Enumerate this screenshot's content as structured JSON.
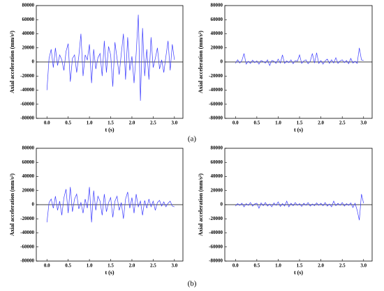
{
  "panel_labels": [
    "(a)",
    "(b)"
  ],
  "chart_data": [
    {
      "type": "line",
      "xlabel": "t (s)",
      "ylabel": "Axial acceleration (mm/s²)",
      "color": "#3b3bff",
      "xlim": [
        -0.25,
        3.2
      ],
      "ylim": [
        -80000,
        80000
      ],
      "xticks": [
        {
          "value": 0,
          "label": "0.0"
        },
        0.5,
        {
          "value": 1,
          "label": "1.0"
        },
        1.5,
        {
          "value": 2,
          "label": "2.0"
        },
        2.5,
        {
          "value": 3,
          "label": "3.0"
        }
      ],
      "yticks": [
        -80000,
        -60000,
        -40000,
        -20000,
        0,
        20000,
        40000,
        60000,
        80000
      ],
      "x": [
        0,
        0.05,
        0.1,
        0.15,
        0.2,
        0.25,
        0.3,
        0.35,
        0.4,
        0.45,
        0.5,
        0.55,
        0.6,
        0.65,
        0.7,
        0.75,
        0.8,
        0.85,
        0.9,
        0.95,
        1,
        1.05,
        1.1,
        1.15,
        1.2,
        1.25,
        1.3,
        1.35,
        1.4,
        1.45,
        1.5,
        1.55,
        1.6,
        1.65,
        1.7,
        1.75,
        1.8,
        1.85,
        1.9,
        1.95,
        2,
        2.05,
        2.1,
        2.15,
        2.2,
        2.25,
        2.3,
        2.35,
        2.4,
        2.45,
        2.5,
        2.55,
        2.6,
        2.65,
        2.7,
        2.75,
        2.8,
        2.85,
        2.9,
        2.95,
        3
      ],
      "values": [
        -40000,
        5000,
        18000,
        -8000,
        20000,
        -5000,
        10000,
        3000,
        -12000,
        15000,
        26000,
        -28000,
        5000,
        10000,
        -15000,
        8000,
        40000,
        -20000,
        10000,
        3000,
        25000,
        -30000,
        18000,
        -10000,
        6000,
        12000,
        -20000,
        30000,
        -15000,
        22000,
        10000,
        -35000,
        28000,
        5000,
        -18000,
        12000,
        40000,
        -25000,
        35000,
        -12000,
        8000,
        -30000,
        12000,
        67000,
        -55000,
        48000,
        -20000,
        18000,
        -25000,
        35000,
        -8000,
        5000,
        20000,
        -10000,
        3000,
        -15000,
        8000,
        30000,
        -12000,
        25000,
        3000
      ]
    },
    {
      "type": "line",
      "xlabel": "t (s)",
      "ylabel": "Axial acceleration (mm/s²)",
      "color": "#3b3bff",
      "xlim": [
        -0.25,
        3.2
      ],
      "ylim": [
        -80000,
        80000
      ],
      "xticks": [
        {
          "value": 0,
          "label": "0.0"
        },
        0.5,
        {
          "value": 1,
          "label": "1.0"
        },
        1.5,
        {
          "value": 2,
          "label": "2.0"
        },
        2.5,
        {
          "value": 3,
          "label": "3.0"
        }
      ],
      "yticks": [
        -80000,
        -60000,
        -40000,
        -20000,
        0,
        20000,
        40000,
        60000,
        80000
      ],
      "x": [
        0,
        0.05,
        0.1,
        0.15,
        0.2,
        0.25,
        0.3,
        0.35,
        0.4,
        0.45,
        0.5,
        0.55,
        0.6,
        0.65,
        0.7,
        0.75,
        0.8,
        0.85,
        0.9,
        0.95,
        1,
        1.05,
        1.1,
        1.15,
        1.2,
        1.25,
        1.3,
        1.35,
        1.4,
        1.45,
        1.5,
        1.55,
        1.6,
        1.65,
        1.7,
        1.75,
        1.8,
        1.85,
        1.9,
        1.95,
        2,
        2.05,
        2.1,
        2.15,
        2.2,
        2.25,
        2.3,
        2.35,
        2.4,
        2.45,
        2.5,
        2.55,
        2.6,
        2.65,
        2.7,
        2.75,
        2.8,
        2.85,
        2.9,
        2.95,
        3
      ],
      "values": [
        -2000,
        3000,
        -1500,
        2000,
        12000,
        -3000,
        1000,
        -2000,
        2500,
        -1000,
        1500,
        -3000,
        2000,
        500,
        -1500,
        3000,
        -5000,
        2000,
        1000,
        -2000,
        4000,
        -1500,
        10000,
        -2000,
        1500,
        -1000,
        3000,
        -2500,
        2000,
        1000,
        10000,
        -2000,
        1500,
        3000,
        -2500,
        1000,
        12000,
        -1500,
        13000,
        -2000,
        2000,
        -3000,
        1500,
        4000,
        -2000,
        3000,
        -1500,
        6000,
        -2000,
        1500,
        3000,
        -1000,
        2000,
        -2500,
        5000,
        -1500,
        1000,
        -2000,
        20000,
        3000,
        2000
      ]
    },
    {
      "type": "line",
      "xlabel": "t (s)",
      "ylabel": "Axial acceleration (mm/s²)",
      "color": "#3b3bff",
      "xlim": [
        -0.25,
        3.2
      ],
      "ylim": [
        -80000,
        80000
      ],
      "xticks": [
        {
          "value": 0,
          "label": "0.0"
        },
        0.5,
        {
          "value": 1,
          "label": "1.0"
        },
        1.5,
        {
          "value": 2,
          "label": "2.0"
        },
        2.5,
        {
          "value": 3,
          "label": "3.0"
        }
      ],
      "yticks": [
        -80000,
        -60000,
        -40000,
        -20000,
        0,
        20000,
        40000,
        60000,
        80000
      ],
      "x": [
        0,
        0.05,
        0.1,
        0.15,
        0.2,
        0.25,
        0.3,
        0.35,
        0.4,
        0.45,
        0.5,
        0.55,
        0.6,
        0.65,
        0.7,
        0.75,
        0.8,
        0.85,
        0.9,
        0.95,
        1,
        1.05,
        1.1,
        1.15,
        1.2,
        1.25,
        1.3,
        1.35,
        1.4,
        1.45,
        1.5,
        1.55,
        1.6,
        1.65,
        1.7,
        1.75,
        1.8,
        1.85,
        1.9,
        1.95,
        2,
        2.05,
        2.1,
        2.15,
        2.2,
        2.25,
        2.3,
        2.35,
        2.4,
        2.45,
        2.5,
        2.55,
        2.6,
        2.65,
        2.7,
        2.75,
        2.8,
        2.85,
        2.9,
        2.95,
        3
      ],
      "values": [
        -25000,
        3000,
        8000,
        -5000,
        12000,
        -8000,
        5000,
        -15000,
        10000,
        22000,
        -12000,
        25000,
        -10000,
        8000,
        15000,
        -6000,
        3000,
        -12000,
        8000,
        -5000,
        25000,
        -25000,
        20000,
        -8000,
        12000,
        5000,
        -15000,
        15000,
        -10000,
        3000,
        10000,
        -18000,
        5000,
        12000,
        -8000,
        3000,
        -20000,
        8000,
        18000,
        -5000,
        10000,
        -12000,
        15000,
        -3000,
        5000,
        -15000,
        6000,
        -5000,
        8000,
        -3000,
        5000,
        -8000,
        3000,
        6000,
        -2000,
        4000,
        -3000,
        2000,
        5000,
        -2000,
        -3000
      ]
    },
    {
      "type": "line",
      "xlabel": "t (s)",
      "ylabel": "Axial acceleration (mm/s²)",
      "color": "#3b3bff",
      "xlim": [
        -0.25,
        3.2
      ],
      "ylim": [
        -80000,
        80000
      ],
      "xticks": [
        {
          "value": 0,
          "label": "0.0"
        },
        0.5,
        {
          "value": 1,
          "label": "1.0"
        },
        1.5,
        {
          "value": 2,
          "label": "2.0"
        },
        2.5,
        {
          "value": 3,
          "label": "3.0"
        }
      ],
      "yticks": [
        -80000,
        -60000,
        -40000,
        -20000,
        0,
        20000,
        40000,
        60000,
        80000
      ],
      "x": [
        0,
        0.05,
        0.1,
        0.15,
        0.2,
        0.25,
        0.3,
        0.35,
        0.4,
        0.45,
        0.5,
        0.55,
        0.6,
        0.65,
        0.7,
        0.75,
        0.8,
        0.85,
        0.9,
        0.95,
        1,
        1.05,
        1.1,
        1.15,
        1.2,
        1.25,
        1.3,
        1.35,
        1.4,
        1.45,
        1.5,
        1.55,
        1.6,
        1.65,
        1.7,
        1.75,
        1.8,
        1.85,
        1.9,
        1.95,
        2,
        2.05,
        2.1,
        2.15,
        2.2,
        2.25,
        2.3,
        2.35,
        2.4,
        2.45,
        2.5,
        2.55,
        2.6,
        2.65,
        2.7,
        2.75,
        2.8,
        2.85,
        2.9,
        2.95,
        3
      ],
      "values": [
        -2000,
        1500,
        -1000,
        2000,
        -3000,
        1500,
        -1000,
        3000,
        -2000,
        1000,
        2000,
        -5000,
        2500,
        -1500,
        3000,
        -2000,
        1000,
        -3000,
        2500,
        -1000,
        4000,
        -2500,
        1500,
        -2000,
        5000,
        -3000,
        2000,
        -1500,
        3000,
        -1000,
        1500,
        -2500,
        2000,
        -1000,
        3000,
        -2000,
        1000,
        -1500,
        2500,
        -1000,
        2000,
        -1500,
        3000,
        -2000,
        1000,
        -3000,
        5000,
        -1500,
        2000,
        -1000,
        3000,
        -2000,
        1500,
        -1000,
        2500,
        -4000,
        2000,
        -8000,
        -22000,
        15000,
        2000
      ]
    }
  ]
}
